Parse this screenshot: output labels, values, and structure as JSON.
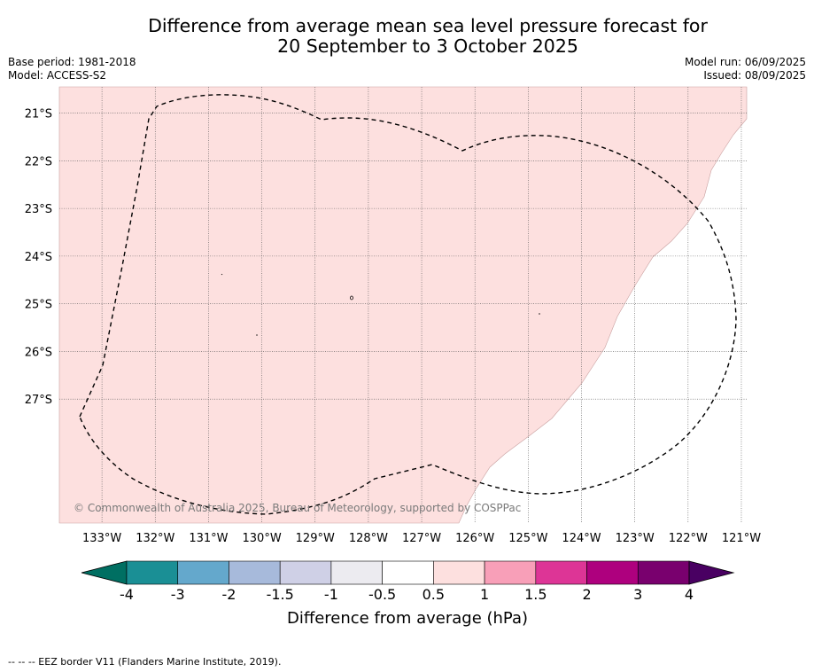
{
  "title": {
    "line1": "Difference from average mean sea level pressure forecast for",
    "line2": "20 September to 3 October 2025"
  },
  "meta": {
    "base_period": "Base period: 1981-2018",
    "model": "Model: ACCESS-S2",
    "model_run": "Model run: 06/09/2025",
    "issued": "Issued: 08/09/2025"
  },
  "map": {
    "lon_range": [
      -133.8,
      -120.9
    ],
    "lat_range": [
      -29.6,
      -20.45
    ],
    "lon_labels": [
      "133°W",
      "132°W",
      "131°W",
      "130°W",
      "129°W",
      "128°W",
      "127°W",
      "126°W",
      "125°W",
      "124°W",
      "123°W",
      "122°W",
      "121°W"
    ],
    "lat_labels": [
      "21°S",
      "22°S",
      "23°S",
      "24°S",
      "25°S",
      "26°S",
      "27°S"
    ],
    "copyright": "© Commonwealth of Australia 2025, Bureau of Meteorology, supported by COSPPac",
    "region_color": "#fde0df"
  },
  "colorbar": {
    "label": "Difference from average (hPa)",
    "tick_labels": [
      "-4",
      "-3",
      "-2",
      "-1.5",
      "-1",
      "-0.5",
      "0.5",
      "1",
      "1.5",
      "2",
      "3",
      "4"
    ],
    "colors": [
      "#1a8f95",
      "#64a8cc",
      "#a7badb",
      "#cfd0e6",
      "#ecebf0",
      "#ffffff",
      "#fde0df",
      "#f89fb8",
      "#dd3596",
      "#ae007e",
      "#79006e"
    ],
    "under_color": "#006f62",
    "over_color": "#490062"
  },
  "footer": "--  --  -- EEZ border V11 (Flanders Marine Institute, 2019)."
}
